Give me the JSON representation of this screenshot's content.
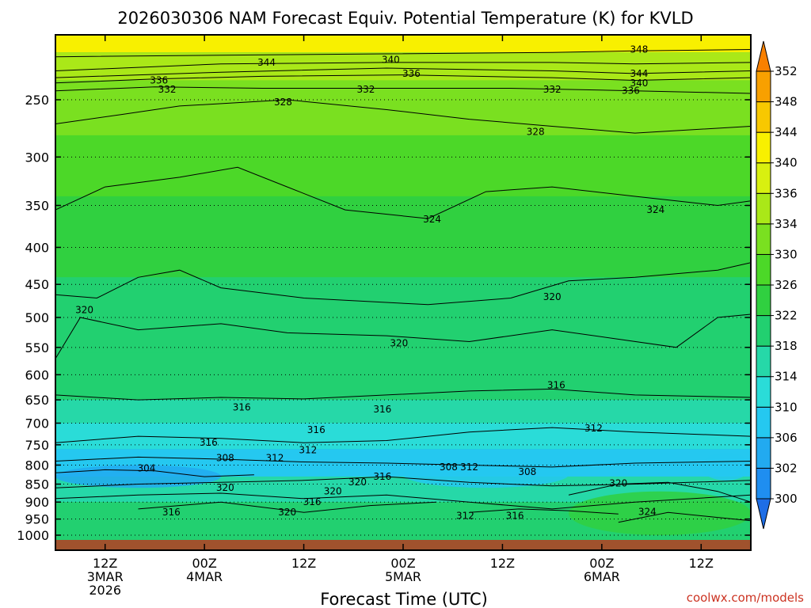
{
  "title": "2026030306 NAM Forecast Equiv. Potential Temperature (K) for KVLD",
  "credit": "coolwx.com/models",
  "colors": {
    "ground": "#a0522d",
    "frame": "#000000",
    "credit": "#cc3322"
  },
  "chart_data": {
    "type": "heatmap",
    "title": "2026030306 NAM Forecast Equiv. Potential Temperature (K) for KVLD",
    "quantity": "Equiv. Potential Temperature (K)",
    "station": "KVLD",
    "xlabel": "Forecast Time (UTC)",
    "ylabel": "",
    "x_range_hours": [
      0,
      84
    ],
    "y_range_hpa": [
      1000,
      200
    ],
    "y_scale": "log-pressure",
    "grid": "dotted at pressure levels",
    "x_ticks": [
      {
        "hour": 6,
        "line1": "12Z",
        "line2": "3MAR",
        "line3": "2026"
      },
      {
        "hour": 18,
        "line1": "00Z",
        "line2": "4MAR",
        "line3": ""
      },
      {
        "hour": 30,
        "line1": "12Z",
        "line2": "",
        "line3": ""
      },
      {
        "hour": 42,
        "line1": "00Z",
        "line2": "5MAR",
        "line3": ""
      },
      {
        "hour": 54,
        "line1": "12Z",
        "line2": "",
        "line3": ""
      },
      {
        "hour": 66,
        "line1": "00Z",
        "line2": "6MAR",
        "line3": ""
      },
      {
        "hour": 78,
        "line1": "12Z",
        "line2": "",
        "line3": ""
      }
    ],
    "y_ticks": [
      250,
      300,
      350,
      400,
      450,
      500,
      550,
      600,
      650,
      700,
      750,
      800,
      850,
      900,
      950,
      1000
    ],
    "colorbar": {
      "levels": [
        300,
        302,
        306,
        310,
        314,
        318,
        322,
        326,
        330,
        334,
        336,
        340,
        344,
        348,
        352
      ],
      "colors": [
        "#1e6ee6",
        "#1f8ef0",
        "#22aaf0",
        "#25c8f0",
        "#2adcd8",
        "#26d8a8",
        "#22d070",
        "#30d040",
        "#4cd828",
        "#7ae020",
        "#aae818",
        "#d8f010",
        "#f8f000",
        "#f8c800",
        "#f8a000",
        "#f88000"
      ]
    },
    "rows": [
      {
        "p_top": 200,
        "p_bot": 215,
        "theta": 342
      },
      {
        "p_top": 215,
        "p_bot": 235,
        "theta": 334
      },
      {
        "p_top": 235,
        "p_bot": 280,
        "theta": 330
      },
      {
        "p_top": 280,
        "p_bot": 340,
        "theta": 327
      },
      {
        "p_top": 340,
        "p_bot": 440,
        "theta": 325
      },
      {
        "p_top": 440,
        "p_bot": 560,
        "theta": 321
      },
      {
        "p_top": 560,
        "p_bot": 650,
        "theta": 318
      },
      {
        "p_top": 650,
        "p_bot": 700,
        "theta": 315
      },
      {
        "p_top": 700,
        "p_bot": 760,
        "theta": 312
      },
      {
        "p_top": 760,
        "p_bot": 830,
        "theta": 307
      },
      {
        "p_top": 830,
        "p_bot": 900,
        "theta": 315
      },
      {
        "p_top": 900,
        "p_bot": 1010,
        "theta": 319
      }
    ],
    "patches": [
      {
        "h0": 0,
        "h1": 20,
        "p0": 800,
        "p1": 860,
        "theta": 303
      },
      {
        "h0": 42,
        "h1": 62,
        "p0": 790,
        "p1": 860,
        "theta": 308
      },
      {
        "h0": 42,
        "h1": 60,
        "p0": 700,
        "p1": 760,
        "theta": 310
      },
      {
        "h0": 78,
        "h1": 84,
        "p0": 770,
        "p1": 840,
        "theta": 306
      },
      {
        "h0": 62,
        "h1": 84,
        "p0": 870,
        "p1": 1000,
        "theta": 322
      },
      {
        "h0": 12,
        "h1": 36,
        "p0": 900,
        "p1": 1000,
        "theta": 321
      }
    ],
    "contours": [
      {
        "label": "348",
        "points": [
          [
            0,
            218
          ],
          [
            20,
            217
          ],
          [
            40,
            216
          ],
          [
            60,
            215
          ],
          [
            70,
            214
          ],
          [
            84,
            213
          ]
        ]
      },
      {
        "label": "344",
        "points": [
          [
            0,
            228
          ],
          [
            20,
            223
          ],
          [
            40,
            222
          ],
          [
            60,
            222
          ],
          [
            70,
            223
          ],
          [
            84,
            222
          ]
        ]
      },
      {
        "label": "340",
        "points": [
          [
            0,
            233
          ],
          [
            20,
            229
          ],
          [
            40,
            226
          ],
          [
            60,
            228
          ],
          [
            70,
            230
          ],
          [
            84,
            228
          ]
        ]
      },
      {
        "label": "336",
        "points": [
          [
            0,
            237
          ],
          [
            12,
            234
          ],
          [
            25,
            232
          ],
          [
            42,
            231
          ],
          [
            60,
            233
          ],
          [
            70,
            235
          ],
          [
            84,
            233
          ]
        ]
      },
      {
        "label": "332",
        "points": [
          [
            0,
            243
          ],
          [
            12,
            240
          ],
          [
            25,
            241
          ],
          [
            40,
            241
          ],
          [
            55,
            241
          ],
          [
            70,
            243
          ],
          [
            84,
            245
          ]
        ]
      },
      {
        "label": "328",
        "points": [
          [
            0,
            270
          ],
          [
            8,
            262
          ],
          [
            15,
            255
          ],
          [
            28,
            250
          ],
          [
            40,
            258
          ],
          [
            50,
            266
          ],
          [
            60,
            272
          ],
          [
            70,
            278
          ],
          [
            84,
            272
          ]
        ]
      },
      {
        "label": "324",
        "points": [
          [
            0,
            355
          ],
          [
            6,
            330
          ],
          [
            15,
            320
          ],
          [
            22,
            310
          ],
          [
            28,
            330
          ],
          [
            35,
            355
          ],
          [
            45,
            365
          ],
          [
            52,
            335
          ],
          [
            60,
            330
          ],
          [
            70,
            340
          ],
          [
            80,
            350
          ],
          [
            84,
            345
          ]
        ]
      },
      {
        "label": "320",
        "points": [
          [
            0,
            465
          ],
          [
            5,
            470
          ],
          [
            10,
            440
          ],
          [
            15,
            430
          ],
          [
            20,
            455
          ],
          [
            30,
            470
          ],
          [
            45,
            480
          ],
          [
            55,
            470
          ],
          [
            62,
            445
          ],
          [
            70,
            440
          ],
          [
            80,
            430
          ],
          [
            84,
            420
          ]
        ]
      },
      {
        "label": "320",
        "points": [
          [
            0,
            570
          ],
          [
            3,
            500
          ],
          [
            10,
            520
          ],
          [
            20,
            510
          ],
          [
            28,
            525
          ],
          [
            40,
            530
          ],
          [
            50,
            540
          ],
          [
            60,
            520
          ],
          [
            75,
            550
          ],
          [
            80,
            500
          ],
          [
            84,
            495
          ]
        ]
      },
      {
        "label": "316",
        "points": [
          [
            0,
            640
          ],
          [
            10,
            650
          ],
          [
            20,
            645
          ],
          [
            30,
            648
          ],
          [
            40,
            640
          ],
          [
            50,
            632
          ],
          [
            60,
            628
          ],
          [
            70,
            640
          ],
          [
            84,
            645
          ]
        ]
      },
      {
        "label": "312",
        "points": [
          [
            0,
            745
          ],
          [
            10,
            730
          ],
          [
            20,
            735
          ],
          [
            30,
            745
          ],
          [
            40,
            740
          ],
          [
            50,
            720
          ],
          [
            60,
            710
          ],
          [
            70,
            720
          ],
          [
            84,
            730
          ]
        ]
      },
      {
        "label": "308",
        "points": [
          [
            0,
            790
          ],
          [
            10,
            780
          ],
          [
            20,
            785
          ],
          [
            30,
            792
          ],
          [
            40,
            795
          ],
          [
            50,
            800
          ],
          [
            60,
            805
          ],
          [
            70,
            795
          ],
          [
            84,
            790
          ]
        ]
      },
      {
        "label": "304",
        "points": [
          [
            0,
            820
          ],
          [
            6,
            812
          ],
          [
            12,
            815
          ],
          [
            18,
            830
          ],
          [
            24,
            825
          ]
        ]
      },
      {
        "label": "312",
        "points": [
          [
            0,
            860
          ],
          [
            10,
            850
          ],
          [
            20,
            845
          ],
          [
            30,
            840
          ],
          [
            40,
            830
          ],
          [
            50,
            845
          ],
          [
            60,
            855
          ],
          [
            70,
            850
          ],
          [
            84,
            840
          ]
        ]
      },
      {
        "label": "316",
        "points": [
          [
            0,
            890
          ],
          [
            10,
            880
          ],
          [
            20,
            875
          ],
          [
            30,
            890
          ],
          [
            40,
            880
          ],
          [
            50,
            900
          ],
          [
            60,
            920
          ],
          [
            70,
            900
          ],
          [
            84,
            880
          ]
        ]
      },
      {
        "label": "320",
        "points": [
          [
            10,
            920
          ],
          [
            20,
            900
          ],
          [
            30,
            930
          ],
          [
            38,
            910
          ],
          [
            46,
            900
          ]
        ]
      },
      {
        "label": "320",
        "points": [
          [
            62,
            880
          ],
          [
            68,
            850
          ],
          [
            74,
            845
          ],
          [
            80,
            870
          ],
          [
            84,
            900
          ]
        ]
      },
      {
        "label": "312",
        "points": [
          [
            50,
            930
          ],
          [
            56,
            920
          ],
          [
            62,
            925
          ],
          [
            68,
            935
          ]
        ]
      },
      {
        "label": "324",
        "points": [
          [
            68,
            960
          ],
          [
            74,
            930
          ],
          [
            80,
            945
          ],
          [
            84,
            955
          ]
        ]
      }
    ],
    "contour_labels": [
      {
        "text": "348",
        "hour": 70.5,
        "p": 213
      },
      {
        "text": "344",
        "hour": 25.5,
        "p": 222
      },
      {
        "text": "340",
        "hour": 40.5,
        "p": 220
      },
      {
        "text": "336",
        "hour": 43,
        "p": 230
      },
      {
        "text": "344",
        "hour": 70.5,
        "p": 230
      },
      {
        "text": "340",
        "hour": 70.5,
        "p": 237
      },
      {
        "text": "336",
        "hour": 12.5,
        "p": 235
      },
      {
        "text": "332",
        "hour": 13.5,
        "p": 242
      },
      {
        "text": "336",
        "hour": 69.5,
        "p": 243
      },
      {
        "text": "332",
        "hour": 37.5,
        "p": 242
      },
      {
        "text": "332",
        "hour": 60,
        "p": 242
      },
      {
        "text": "328",
        "hour": 27.5,
        "p": 252
      },
      {
        "text": "328",
        "hour": 58,
        "p": 277
      },
      {
        "text": "324",
        "hour": 45.5,
        "p": 366
      },
      {
        "text": "324",
        "hour": 72.5,
        "p": 355
      },
      {
        "text": "320",
        "hour": 3.5,
        "p": 488
      },
      {
        "text": "320",
        "hour": 60,
        "p": 468
      },
      {
        "text": "320",
        "hour": 41.5,
        "p": 543
      },
      {
        "text": "316",
        "hour": 60.5,
        "p": 620
      },
      {
        "text": "316",
        "hour": 22.5,
        "p": 666
      },
      {
        "text": "316",
        "hour": 39.5,
        "p": 670
      },
      {
        "text": "316",
        "hour": 31.5,
        "p": 715
      },
      {
        "text": "312",
        "hour": 65,
        "p": 712
      },
      {
        "text": "316",
        "hour": 18.5,
        "p": 745
      },
      {
        "text": "312",
        "hour": 30.5,
        "p": 763
      },
      {
        "text": "308",
        "hour": 20.5,
        "p": 782
      },
      {
        "text": "312",
        "hour": 26.5,
        "p": 782
      },
      {
        "text": "304",
        "hour": 11,
        "p": 808
      },
      {
        "text": "308",
        "hour": 47.5,
        "p": 805
      },
      {
        "text": "312",
        "hour": 50,
        "p": 805
      },
      {
        "text": "308",
        "hour": 57,
        "p": 817
      },
      {
        "text": "316",
        "hour": 39.5,
        "p": 830
      },
      {
        "text": "320",
        "hour": 36.5,
        "p": 845
      },
      {
        "text": "320",
        "hour": 68,
        "p": 848
      },
      {
        "text": "320",
        "hour": 20.5,
        "p": 860
      },
      {
        "text": "320",
        "hour": 33.5,
        "p": 870
      },
      {
        "text": "316",
        "hour": 31,
        "p": 900
      },
      {
        "text": "320",
        "hour": 28,
        "p": 930
      },
      {
        "text": "316",
        "hour": 14,
        "p": 930
      },
      {
        "text": "312",
        "hour": 49.5,
        "p": 940
      },
      {
        "text": "316",
        "hour": 55.5,
        "p": 940
      },
      {
        "text": "324",
        "hour": 71.5,
        "p": 928
      }
    ]
  }
}
